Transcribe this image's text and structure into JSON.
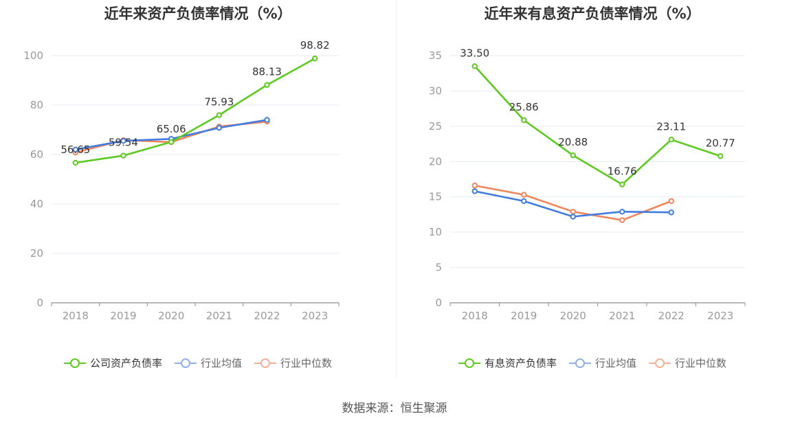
{
  "source": "数据来源：恒生聚源",
  "chart_data": [
    {
      "type": "line",
      "title": "近年来资产负债率情况（%）",
      "categories": [
        "2018",
        "2019",
        "2020",
        "2021",
        "2022",
        "2023"
      ],
      "ylim": [
        0,
        100
      ],
      "yticks": [
        0,
        20,
        40,
        60,
        80,
        100
      ],
      "grid": true,
      "legend_position": "bottom",
      "series": [
        {
          "name": "公司资产负债率",
          "color": "#5cc91f",
          "values": [
            56.65,
            59.54,
            65.06,
            75.93,
            88.13,
            98.82
          ],
          "labels": [
            "56.65",
            "59.54",
            "65.06",
            "75.93",
            "88.13",
            "98.82"
          ]
        },
        {
          "name": "行业均值",
          "color": "#3f7be0",
          "values": [
            62.0,
            65.5,
            66.3,
            70.8,
            74.0,
            null
          ]
        },
        {
          "name": "行业中位数",
          "color": "#f0845a",
          "values": [
            60.8,
            65.8,
            65.0,
            71.3,
            73.3,
            null
          ]
        }
      ]
    },
    {
      "type": "line",
      "title": "近年来有息资产负债率情况（%）",
      "categories": [
        "2018",
        "2019",
        "2020",
        "2021",
        "2022",
        "2023"
      ],
      "ylim": [
        0,
        35
      ],
      "yticks": [
        0,
        5,
        10,
        15,
        20,
        25,
        30,
        35
      ],
      "grid": true,
      "legend_position": "bottom",
      "series": [
        {
          "name": "有息资产负债率",
          "color": "#5cc91f",
          "values": [
            33.5,
            25.86,
            20.88,
            16.76,
            23.11,
            20.77
          ],
          "labels": [
            "33.50",
            "25.86",
            "20.88",
            "16.76",
            "23.11",
            "20.77"
          ]
        },
        {
          "name": "行业均值",
          "color": "#3f7be0",
          "values": [
            15.8,
            14.4,
            12.2,
            12.9,
            12.8,
            null
          ]
        },
        {
          "name": "行业中位数",
          "color": "#f0845a",
          "values": [
            16.6,
            15.3,
            12.9,
            11.7,
            14.4,
            null
          ]
        }
      ]
    }
  ]
}
